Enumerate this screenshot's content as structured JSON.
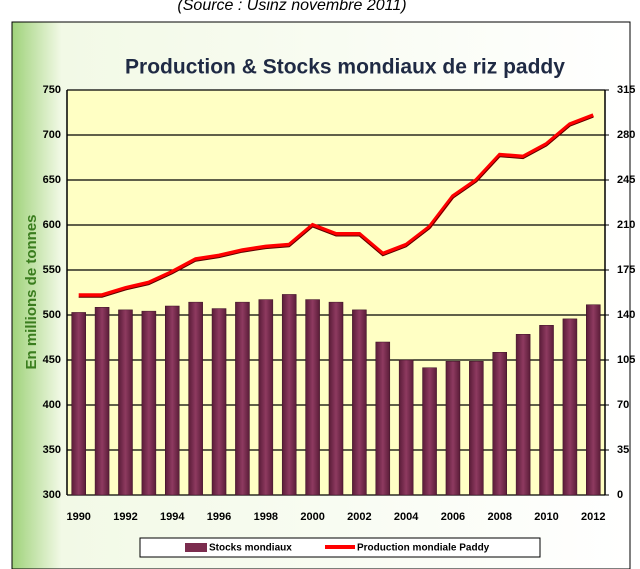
{
  "source": "(Source : Usinz novembre 2011)",
  "chart_data": {
    "type": "bar-line",
    "title": "Production & Stocks mondiaux de riz paddy",
    "ylabel": "En millions de tonnes",
    "categories": [
      "1990",
      null,
      "1992",
      null,
      "1994",
      null,
      "1996",
      null,
      "1998",
      null,
      "2000",
      null,
      "2002",
      null,
      "2004",
      null,
      "2006",
      null,
      "2008",
      null,
      "2010",
      null,
      "2012"
    ],
    "ylim": [
      300,
      750
    ],
    "yticks": [
      300,
      350,
      400,
      450,
      500,
      550,
      600,
      650,
      700,
      750
    ],
    "y2lim": [
      0,
      315
    ],
    "y2ticks": [
      0,
      35,
      70,
      105,
      140,
      175,
      210,
      245,
      280,
      315
    ],
    "grid": true,
    "series": [
      {
        "name": "Stocks mondiaux",
        "type": "bar",
        "axis": "y2",
        "color": "#7b2c4e",
        "values": [
          142,
          146,
          144,
          143,
          147,
          150,
          145,
          150,
          152,
          156,
          152,
          150,
          144,
          119,
          105,
          99,
          104,
          104,
          111,
          125,
          132,
          137,
          148
        ]
      },
      {
        "name": "Production mondiale Paddy",
        "type": "line",
        "color": "#ff0000",
        "values": [
          522,
          522,
          530,
          536,
          548,
          562,
          566,
          572,
          576,
          578,
          600,
          590,
          590,
          568,
          578,
          598,
          632,
          650,
          678,
          676,
          690,
          712,
          722
        ]
      }
    ]
  }
}
